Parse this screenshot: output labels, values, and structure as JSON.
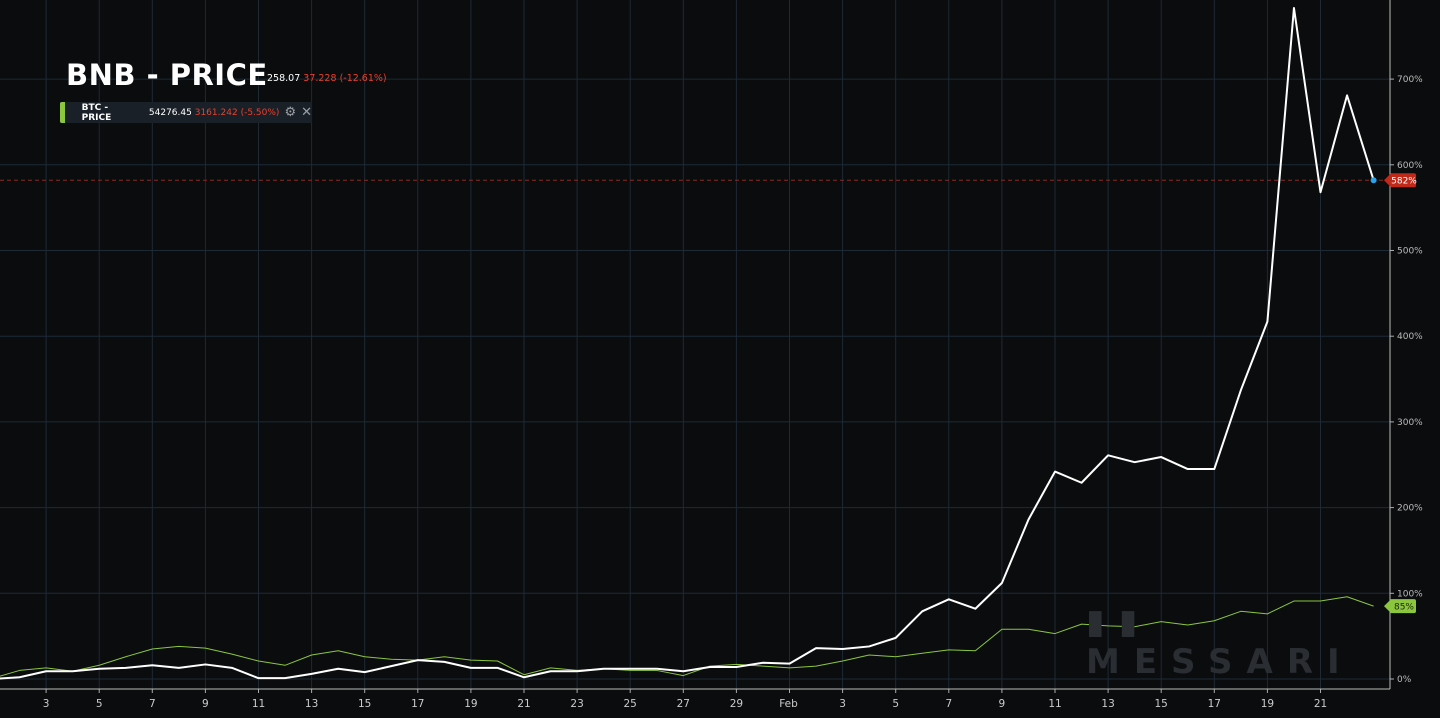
{
  "header": {
    "title": "BNB - PRICE",
    "price": "258.07",
    "change": "37.228",
    "change_pct": "(-12.61%)"
  },
  "legend": {
    "name": "BTC - PRICE",
    "price": "54276.45",
    "change": "3161.242",
    "change_pct": "(-5.50%)",
    "icons": [
      "gear-icon",
      "close-icon"
    ]
  },
  "watermark": "MESSARI",
  "colors": {
    "bnb": "#ffffff",
    "btc": "#8cc63f",
    "bnb_badge": "#c0281a",
    "marker": "#2aa3e8"
  },
  "chart_data": {
    "type": "line",
    "x_ticks": [
      "3",
      "5",
      "7",
      "9",
      "11",
      "13",
      "15",
      "17",
      "19",
      "21",
      "23",
      "25",
      "27",
      "29",
      "Feb",
      "3",
      "5",
      "7",
      "9",
      "11",
      "13",
      "15",
      "17",
      "19",
      "21"
    ],
    "y_ticks": [
      "0%",
      "100%",
      "200%",
      "300%",
      "400%",
      "500%",
      "600%",
      "700%"
    ],
    "ylim": [
      0,
      800
    ],
    "grid": true,
    "y_axis_side": "right",
    "x": [
      "Jan 1",
      "Jan 2",
      "Jan 3",
      "Jan 4",
      "Jan 5",
      "Jan 6",
      "Jan 7",
      "Jan 8",
      "Jan 9",
      "Jan 10",
      "Jan 11",
      "Jan 12",
      "Jan 13",
      "Jan 14",
      "Jan 15",
      "Jan 16",
      "Jan 17",
      "Jan 18",
      "Jan 19",
      "Jan 20",
      "Jan 21",
      "Jan 22",
      "Jan 23",
      "Jan 24",
      "Jan 25",
      "Jan 26",
      "Jan 27",
      "Jan 28",
      "Jan 29",
      "Jan 30",
      "Jan 31",
      "Feb 1",
      "Feb 2",
      "Feb 3",
      "Feb 4",
      "Feb 5",
      "Feb 6",
      "Feb 7",
      "Feb 8",
      "Feb 9",
      "Feb 10",
      "Feb 11",
      "Feb 12",
      "Feb 13",
      "Feb 14",
      "Feb 15",
      "Feb 16",
      "Feb 17",
      "Feb 18",
      "Feb 19",
      "Feb 20",
      "Feb 21",
      "Feb 22"
    ],
    "series": [
      {
        "name": "BNB - PRICE",
        "color": "#ffffff",
        "last_label": "582%",
        "values": [
          0,
          2,
          9,
          9,
          12,
          13,
          16,
          13,
          17,
          13,
          1,
          1,
          6,
          12,
          8,
          15,
          22,
          20,
          13,
          13,
          2,
          9,
          9,
          12,
          12,
          12,
          9,
          14,
          14,
          19,
          18,
          36,
          35,
          38,
          48,
          79,
          93,
          82,
          112,
          186,
          242,
          229,
          261,
          253,
          259,
          245,
          245,
          337,
          417,
          783,
          568,
          681,
          582
        ]
      },
      {
        "name": "BTC - PRICE",
        "color": "#8cc63f",
        "last_label": "85%",
        "values": [
          1,
          10,
          13,
          9,
          16,
          26,
          35,
          38,
          36,
          29,
          21,
          16,
          28,
          33,
          26,
          23,
          22,
          26,
          22,
          21,
          5,
          13,
          10,
          12,
          10,
          10,
          4,
          15,
          17,
          15,
          13,
          15,
          21,
          28,
          26,
          30,
          34,
          33,
          58,
          58,
          53,
          64,
          62,
          61,
          67,
          63,
          68,
          79,
          76,
          91,
          91,
          96,
          85
        ]
      }
    ]
  }
}
